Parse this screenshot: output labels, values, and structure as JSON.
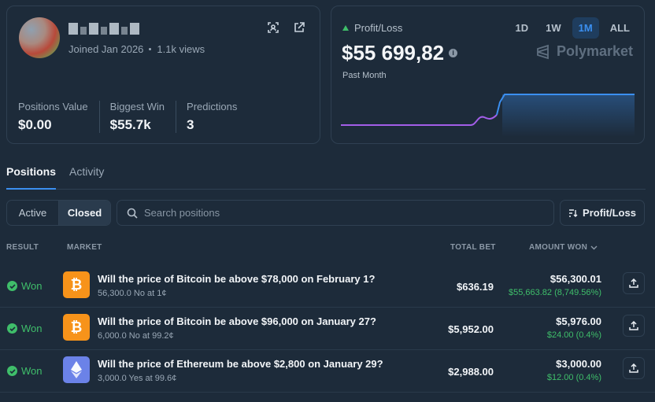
{
  "profile": {
    "joined": "Joined Jan 2026",
    "views": "1.1k views",
    "stats": [
      {
        "label": "Positions Value",
        "value": "$0.00"
      },
      {
        "label": "Biggest Win",
        "value": "$55.7k"
      },
      {
        "label": "Predictions",
        "value": "3"
      }
    ]
  },
  "pnl": {
    "label": "Profit/Loss",
    "value": "$55 699,82",
    "period": "Past Month",
    "ranges": [
      "1D",
      "1W",
      "1M",
      "ALL"
    ],
    "active_range": "1M",
    "brand": "Polymarket",
    "line_color": "#3b8ff0",
    "pre_color": "#a35ee8"
  },
  "tabs": [
    "Positions",
    "Activity"
  ],
  "filters": {
    "segments": [
      "Active",
      "Closed"
    ],
    "search_placeholder": "Search positions",
    "sort_label": "Profit/Loss"
  },
  "table": {
    "headers": {
      "result": "RESULT",
      "market": "MARKET",
      "total_bet": "TOTAL BET",
      "amount_won": "AMOUNT WON"
    },
    "rows": [
      {
        "result": "Won",
        "coin": "btc",
        "title": "Will the price of Bitcoin be above $78,000 on February 1?",
        "sub": "56,300.0 No at 1¢",
        "bet": "$636.19",
        "won": "$56,300.01",
        "delta": "$55,663.82 (8,749.56%)"
      },
      {
        "result": "Won",
        "coin": "btc",
        "title": "Will the price of Bitcoin be above $96,000 on January 27?",
        "sub": "6,000.0 No at 99.2¢",
        "bet": "$5,952.00",
        "won": "$5,976.00",
        "delta": "$24.00 (0.4%)"
      },
      {
        "result": "Won",
        "coin": "eth",
        "title": "Will the price of Ethereum be above $2,800 on January 29?",
        "sub": "3,000.0 Yes at 99.6¢",
        "bet": "$2,988.00",
        "won": "$3,000.00",
        "delta": "$12.00 (0.4%)"
      }
    ]
  },
  "colors": {
    "accent": "#3b8ff0",
    "win": "#3fbe6a",
    "background": "#1d2b3a",
    "border": "#2f4052"
  }
}
